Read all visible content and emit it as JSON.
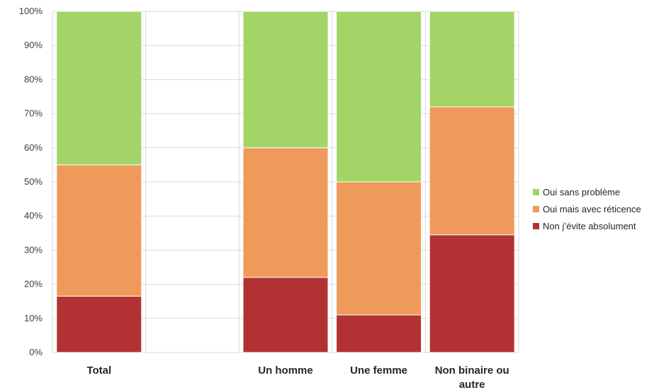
{
  "chart_data": {
    "type": "bar",
    "stacked": true,
    "normalized": true,
    "categories": [
      "Total",
      "",
      "Un homme",
      "Une femme",
      "Non binaire ou autre"
    ],
    "series": [
      {
        "name": "Non j’évite absolument",
        "color": "#b23234",
        "values": [
          16.5,
          null,
          22,
          11,
          34.5
        ]
      },
      {
        "name": "Oui mais avec réticence",
        "color": "#ef9a5b",
        "values": [
          38.5,
          null,
          38,
          39,
          37.5
        ]
      },
      {
        "name": "Oui sans problème",
        "color": "#a3d468",
        "values": [
          45,
          null,
          40,
          50,
          28
        ]
      }
    ],
    "legend_order": [
      "Oui sans problème",
      "Oui mais avec réticence",
      "Non j’évite absolument"
    ],
    "yticks": [
      "0%",
      "10%",
      "20%",
      "30%",
      "40%",
      "50%",
      "60%",
      "70%",
      "80%",
      "90%",
      "100%"
    ],
    "ylim": [
      0,
      100
    ],
    "grid": true,
    "legend_position": "right"
  }
}
